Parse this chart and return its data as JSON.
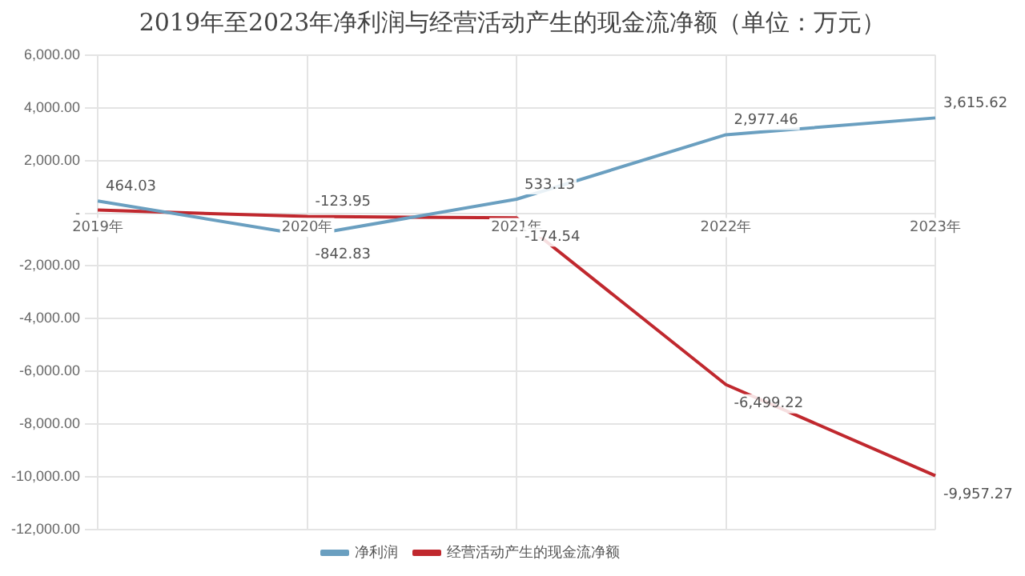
{
  "chart_data": {
    "type": "line",
    "title": "2019年至2023年净利润与经营活动产生的现金流净额（单位：万元）",
    "categories": [
      "2019年",
      "2020年",
      "2021年",
      "2022年",
      "2023年"
    ],
    "series": [
      {
        "name": "净利润",
        "color": "#6a9fc0",
        "values": [
          464.03,
          -842.83,
          533.13,
          2977.46,
          3615.62
        ],
        "value_labels": [
          "464.03",
          "-842.83",
          "533.13",
          "2,977.46",
          "3,615.62"
        ]
      },
      {
        "name": "经营活动产生的现金流净额",
        "color": "#c0282e",
        "values": [
          120,
          -123.95,
          -174.54,
          -6499.22,
          -9957.27
        ],
        "value_labels": [
          null,
          "-123.95",
          "-174.54",
          "-6,499.22",
          "-9,957.27"
        ]
      }
    ],
    "ylim": [
      -12000,
      6000
    ],
    "yticks": [
      {
        "value": -12000,
        "label": "-12,000.00"
      },
      {
        "value": -10000,
        "label": "-10,000.00"
      },
      {
        "value": -8000,
        "label": "-8,000.00"
      },
      {
        "value": -6000,
        "label": "-6,000.00"
      },
      {
        "value": -4000,
        "label": "-4,000.00"
      },
      {
        "value": -2000,
        "label": "-2,000.00"
      },
      {
        "value": 0,
        "label": "-"
      },
      {
        "value": 2000,
        "label": "2,000.00"
      },
      {
        "value": 4000,
        "label": "4,000.00"
      },
      {
        "value": 6000,
        "label": "6,000.00"
      }
    ],
    "grid": true,
    "legend": "bottom",
    "marker": "none",
    "line_style": "solid"
  }
}
